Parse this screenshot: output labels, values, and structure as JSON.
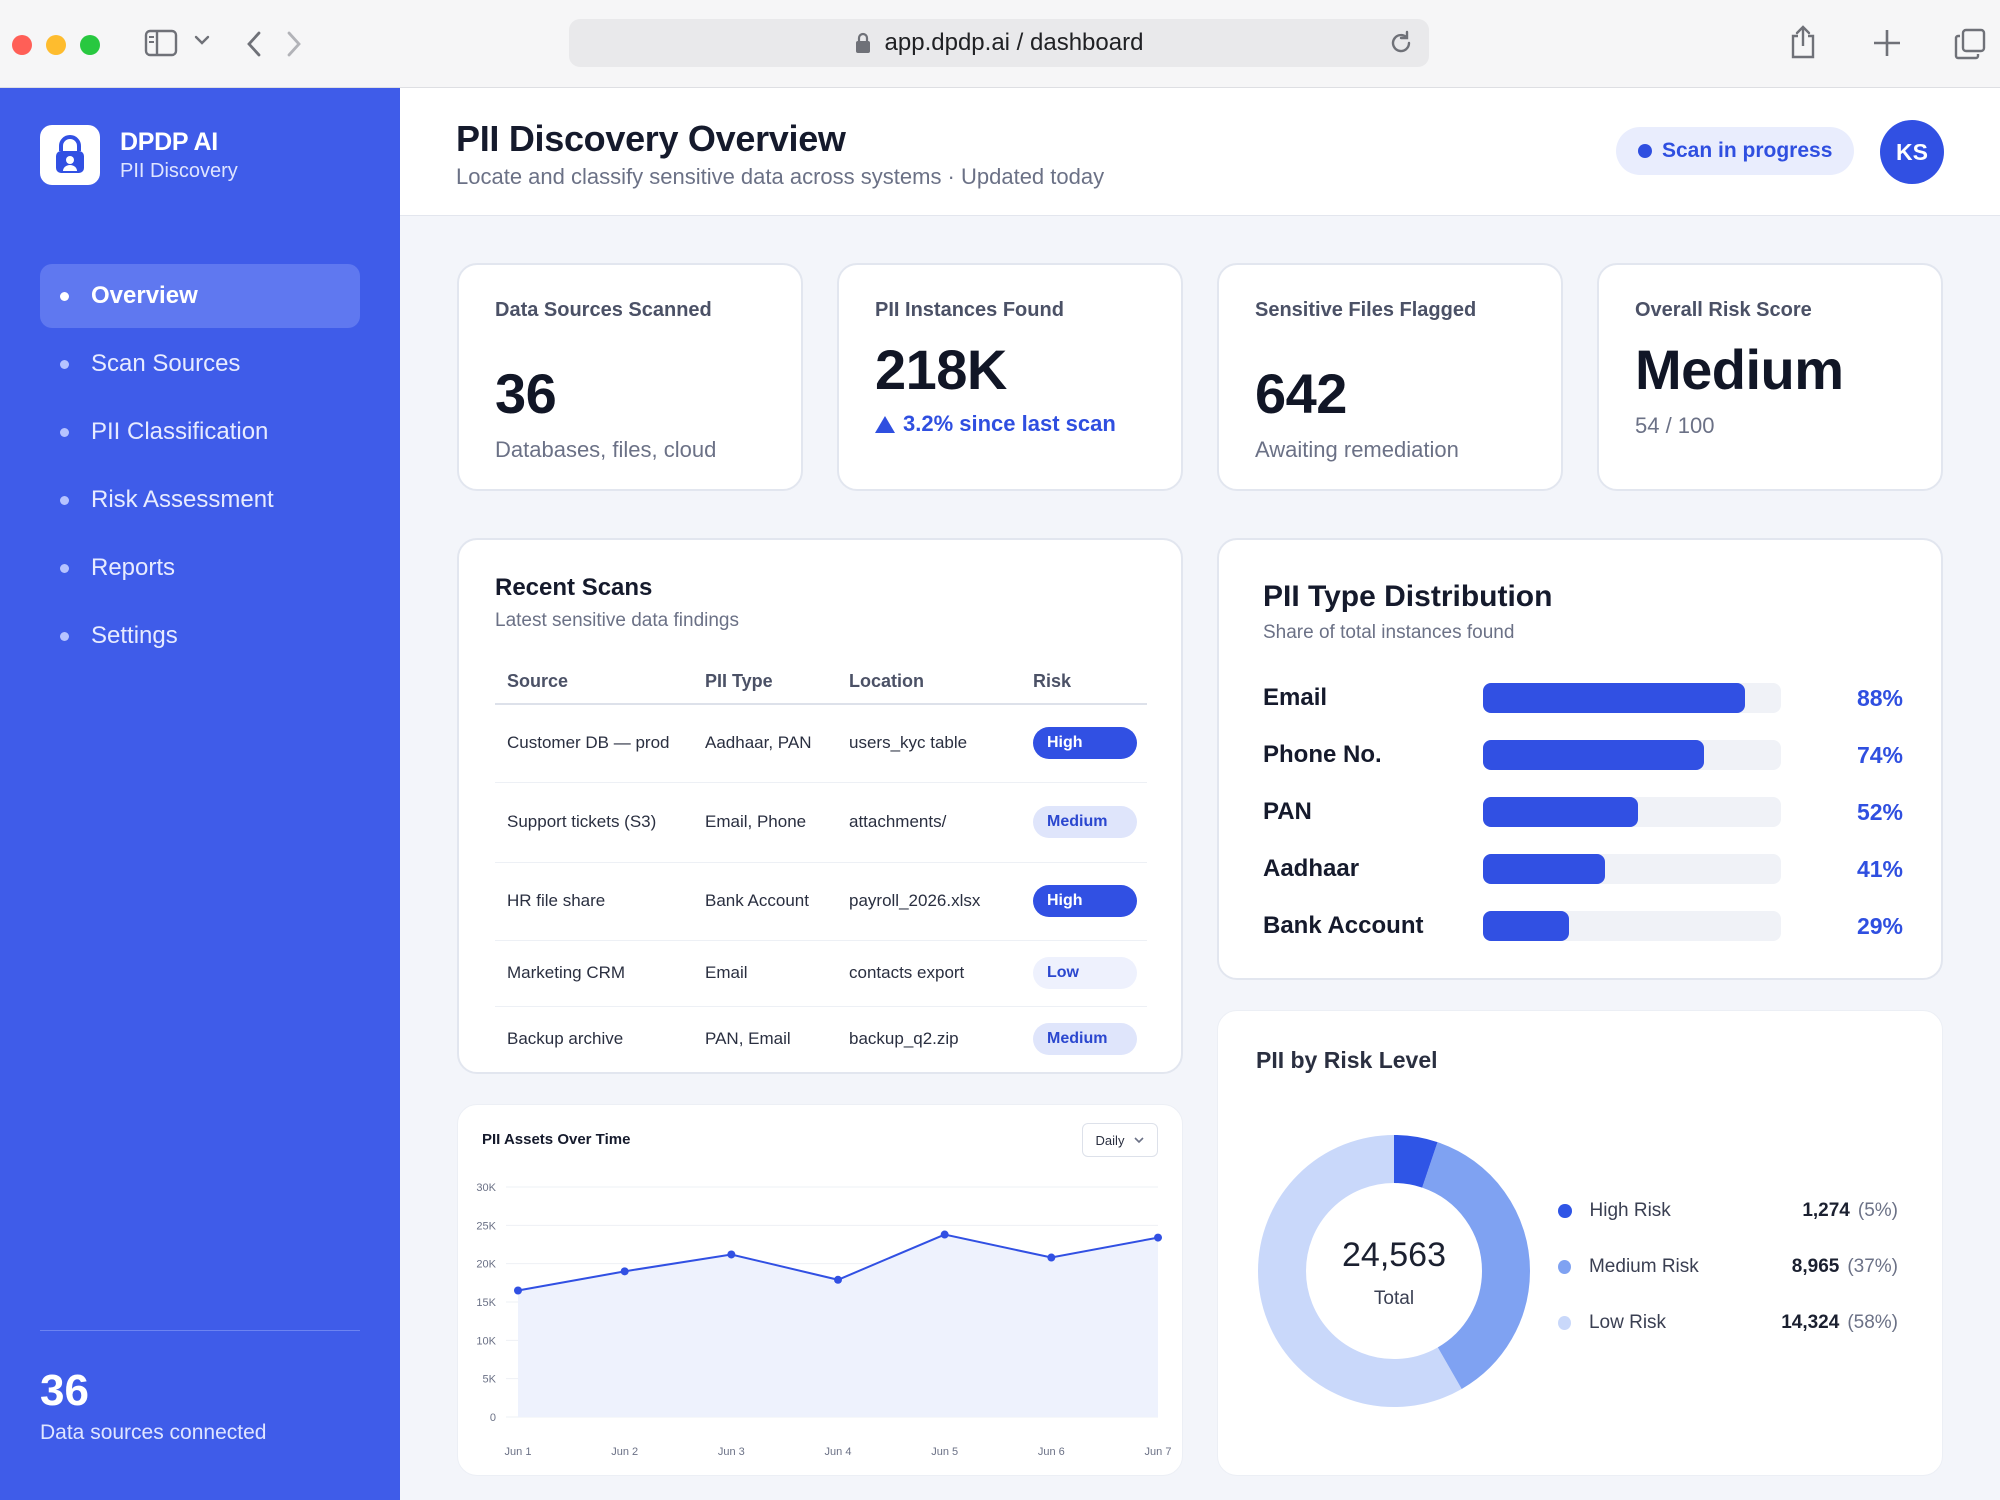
{
  "browser": {
    "url": "app.dpdp.ai / dashboard"
  },
  "sidebar": {
    "brand_name": "DPDP AI",
    "brand_sub": "PII Discovery",
    "items": [
      {
        "label": "Overview",
        "active": true
      },
      {
        "label": "Scan Sources",
        "active": false
      },
      {
        "label": "PII Classification",
        "active": false
      },
      {
        "label": "Risk Assessment",
        "active": false
      },
      {
        "label": "Reports",
        "active": false
      },
      {
        "label": "Settings",
        "active": false
      }
    ],
    "footer_count": "36",
    "footer_label": "Data sources connected",
    "bg_color": "#3f5ce9"
  },
  "header": {
    "title": "PII Discovery Overview",
    "subtitle": "Locate and classify sensitive data across systems · Updated today",
    "status": "Scan in progress",
    "avatar_initials": "KS"
  },
  "stats": [
    {
      "label": "Data Sources Scanned",
      "value": "36",
      "note": "Databases, files, cloud"
    },
    {
      "label": "PII Instances Found",
      "value": "218K",
      "trend": "3.2% since last scan"
    },
    {
      "label": "Sensitive Files Flagged",
      "value": "642",
      "note": "Awaiting remediation"
    },
    {
      "label": "Overall Risk Score",
      "value": "Medium",
      "note": "54 / 100"
    }
  ],
  "recent_scans": {
    "title": "Recent Scans",
    "subtitle": "Latest sensitive data findings",
    "columns": [
      "Source",
      "PII Type",
      "Location",
      "Risk"
    ],
    "rows": [
      {
        "source": "Customer DB — prod",
        "pii_type": "Aadhaar, PAN",
        "location": "users_kyc table",
        "risk": "High"
      },
      {
        "source": "Support tickets (S3)",
        "pii_type": "Email, Phone",
        "location": "attachments/",
        "risk": "Medium"
      },
      {
        "source": "HR file share",
        "pii_type": "Bank Account",
        "location": "payroll_2026.xlsx",
        "risk": "High"
      },
      {
        "source": "Marketing CRM",
        "pii_type": "Email",
        "location": "contacts export",
        "risk": "Low"
      },
      {
        "source": "Backup archive",
        "pii_type": "PAN, Email",
        "location": "backup_q2.zip",
        "risk": "Medium"
      }
    ]
  },
  "distribution": {
    "title": "PII Type Distribution",
    "subtitle": "Share of total instances found",
    "items": [
      {
        "label": "Email",
        "value": 88,
        "pct": "88%"
      },
      {
        "label": "Phone No.",
        "value": 74,
        "pct": "74%"
      },
      {
        "label": "PAN",
        "value": 52,
        "pct": "52%"
      },
      {
        "label": "Aadhaar",
        "value": 41,
        "pct": "41%"
      },
      {
        "label": "Bank Account",
        "value": 29,
        "pct": "29%"
      }
    ]
  },
  "assets_chart": {
    "title": "PII Assets Over Time",
    "period": "Daily"
  },
  "risk_chart": {
    "title": "PII by Risk Level",
    "total": "24,563",
    "total_label": "Total"
  },
  "chart_data": [
    {
      "type": "line",
      "title": "PII Assets Over Time",
      "categories": [
        "Jun 1",
        "Jun 2",
        "Jun 3",
        "Jun 4",
        "Jun 5",
        "Jun 6",
        "Jun 7"
      ],
      "values": [
        16500,
        19000,
        21200,
        17900,
        23800,
        20800,
        23400
      ],
      "yticks": [
        "0",
        "5K",
        "10K",
        "15K",
        "20K",
        "25K",
        "30K"
      ],
      "ylim": [
        0,
        30000
      ],
      "grid": true,
      "color": "#3150e3"
    },
    {
      "type": "pie",
      "title": "PII by Risk Level",
      "series": [
        {
          "name": "High Risk",
          "value": 1274,
          "value_label": "1,274",
          "pct_label": "(5%)",
          "color": "#2f55e6"
        },
        {
          "name": "Medium Risk",
          "value": 8965,
          "value_label": "8,965",
          "pct_label": "(37%)",
          "color": "#7fa2f2"
        },
        {
          "name": "Low Risk",
          "value": 14324,
          "value_label": "14,324",
          "pct_label": "(58%)",
          "color": "#c9d8fa"
        }
      ]
    }
  ]
}
